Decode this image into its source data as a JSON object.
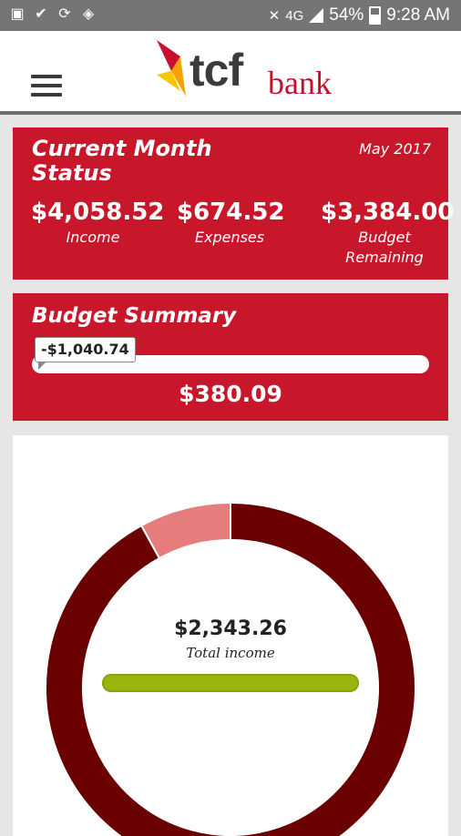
{
  "statusbar": {
    "left_icons": [
      "image-icon",
      "download-done-icon",
      "sync-icon",
      "cast-icon"
    ],
    "network": "4G",
    "battery": "54%",
    "time": "9:28 AM"
  },
  "header": {
    "logo_primary": "tcf",
    "logo_secondary": "bank"
  },
  "current_month": {
    "title": "Current Month Status",
    "date": "May 2017",
    "income": {
      "value": "$4,058.52",
      "label": "Income"
    },
    "expenses": {
      "value": "$674.52",
      "label": "Expenses"
    },
    "budget_remaining": {
      "value": "$3,384.00",
      "label_line1": "Budget",
      "label_line2": "Remaining"
    }
  },
  "budget_summary": {
    "title": "Budget Summary",
    "indicator": "-$1,040.74",
    "value": "$380.09",
    "progress_fraction": 0.0
  },
  "chart": {
    "center_value": "$2,343.26",
    "center_label": "Total income"
  },
  "chart_data": {
    "type": "pie",
    "slices": [
      {
        "fraction": 0.92,
        "color": "#6b0000"
      },
      {
        "fraction": 0.08,
        "color": "#e67c7c"
      }
    ]
  },
  "colors": {
    "brand_red": "#c8172a",
    "donut_dark": "#6b0000",
    "donut_light": "#e67c7c",
    "income_bar": "#9bb50e"
  }
}
